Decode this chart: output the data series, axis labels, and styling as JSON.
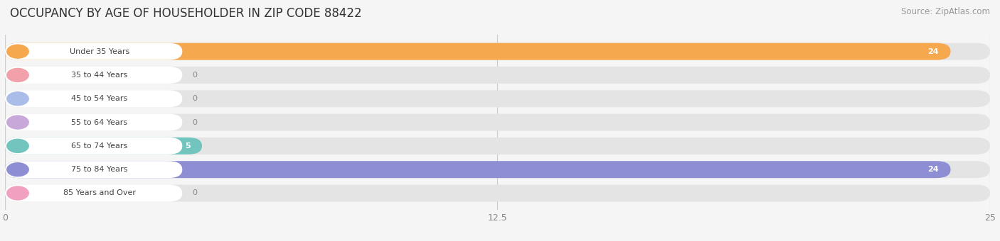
{
  "title": "OCCUPANCY BY AGE OF HOUSEHOLDER IN ZIP CODE 88422",
  "source": "Source: ZipAtlas.com",
  "categories": [
    "Under 35 Years",
    "35 to 44 Years",
    "45 to 54 Years",
    "55 to 64 Years",
    "65 to 74 Years",
    "75 to 84 Years",
    "85 Years and Over"
  ],
  "values": [
    24,
    0,
    0,
    0,
    5,
    24,
    0
  ],
  "bar_colors": [
    "#F5A84E",
    "#F2A0AA",
    "#AABCE8",
    "#C8A8D8",
    "#72C4BF",
    "#8E8ED4",
    "#F2A0C0"
  ],
  "xlim": [
    0,
    25
  ],
  "xticks": [
    0,
    12.5,
    25
  ],
  "background_color": "#f5f5f5",
  "bar_bg_color": "#e4e4e4",
  "title_fontsize": 12,
  "source_fontsize": 8.5,
  "label_fontsize": 8,
  "value_fontsize": 8
}
